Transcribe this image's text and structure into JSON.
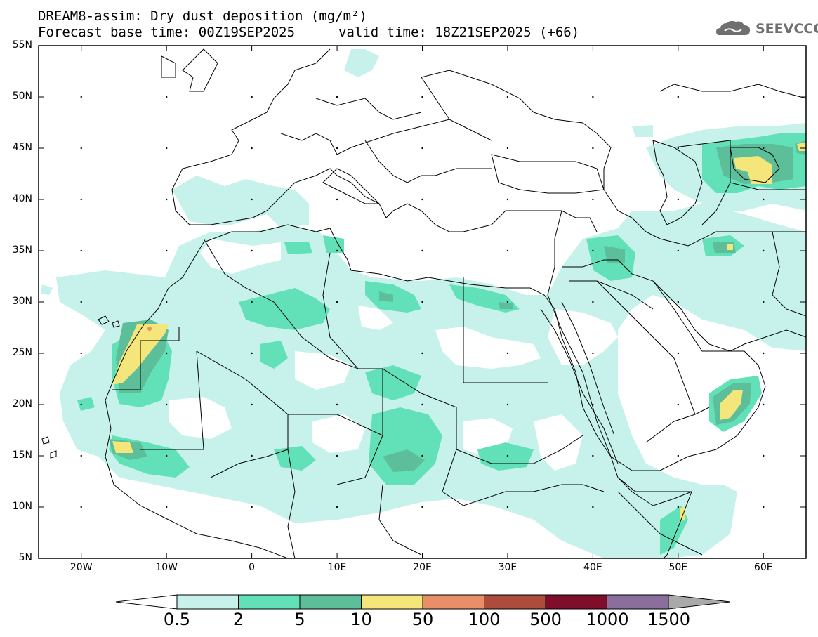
{
  "header": {
    "line1": "DREAM8-assim: Dry dust deposition (mg/m²)",
    "line2_left": "Forecast base time: 00Z19SEP2025",
    "line2_right": "valid time: 18Z21SEP2025 (+66)"
  },
  "logo": {
    "text": "SEEVCCC",
    "icon": "cloud-logo-icon"
  },
  "axes": {
    "lat_labels": [
      "55N",
      "50N",
      "45N",
      "40N",
      "35N",
      "30N",
      "25N",
      "20N",
      "15N",
      "10N",
      "5N"
    ],
    "lon_labels": [
      "20W",
      "10W",
      "0",
      "10E",
      "20E",
      "30E",
      "40E",
      "50E",
      "60E"
    ],
    "lon_range": [
      -25,
      65
    ],
    "lat_range": [
      5,
      55
    ]
  },
  "colorbar": {
    "labels": [
      "0.5",
      "2",
      "5",
      "10",
      "50",
      "100",
      "500",
      "1000",
      "1500"
    ],
    "colors": [
      "#c6f2eb",
      "#62e0b8",
      "#5cbf9a",
      "#f4e67a",
      "#e88f68",
      "#ad4b3c",
      "#7e0e2a",
      "#8a6e9b"
    ],
    "under_color": "#ffffff",
    "over_color": "#a9a9a9"
  },
  "map_colors": {
    "level1": "#c6f2eb",
    "level2": "#62e0b8",
    "level3": "#5cbf9a",
    "level4": "#f4e67a",
    "level5": "#e88f68"
  }
}
